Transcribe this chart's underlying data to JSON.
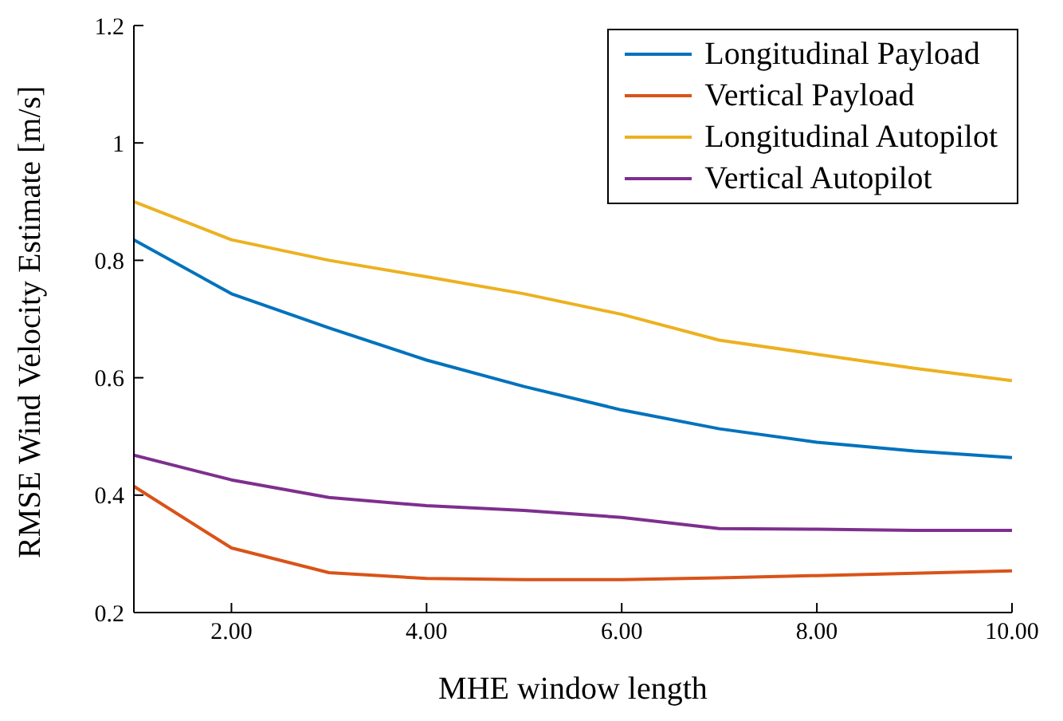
{
  "chart_data": {
    "type": "line",
    "xlabel": "MHE window length",
    "ylabel": "RMSE Wind Velocity Estimate [m/s]",
    "x": [
      1,
      2,
      3,
      4,
      5,
      6,
      7,
      8,
      9,
      10
    ],
    "series": [
      {
        "name": "Longitudinal Payload",
        "color": "#0072bd",
        "values": [
          0.835,
          0.743,
          0.685,
          0.63,
          0.585,
          0.545,
          0.513,
          0.49,
          0.475,
          0.464
        ]
      },
      {
        "name": "Vertical Payload",
        "color": "#d95319",
        "values": [
          0.415,
          0.31,
          0.268,
          0.258,
          0.256,
          0.256,
          0.259,
          0.263,
          0.267,
          0.271
        ]
      },
      {
        "name": "Longitudinal Autopilot",
        "color": "#edb120",
        "values": [
          0.9,
          0.835,
          0.8,
          0.772,
          0.743,
          0.708,
          0.664,
          0.64,
          0.616,
          0.595
        ]
      },
      {
        "name": "Vertical Autopilot",
        "color": "#7e2f8e",
        "values": [
          0.468,
          0.426,
          0.396,
          0.382,
          0.374,
          0.362,
          0.343,
          0.342,
          0.34,
          0.34
        ]
      }
    ],
    "xlim": [
      1,
      10
    ],
    "xticks": [
      {
        "value": 2,
        "label": "2.00"
      },
      {
        "value": 4,
        "label": "4.00"
      },
      {
        "value": 6,
        "label": "6.00"
      },
      {
        "value": 8,
        "label": "8.00"
      },
      {
        "value": 10,
        "label": "10.00"
      }
    ],
    "ylim": [
      0.2,
      1.2
    ],
    "yticks": [
      0.2,
      0.4,
      0.6,
      0.8,
      1,
      1.2
    ],
    "legend": "top right",
    "grid": false,
    "marker": "none",
    "line_style": "solid"
  }
}
